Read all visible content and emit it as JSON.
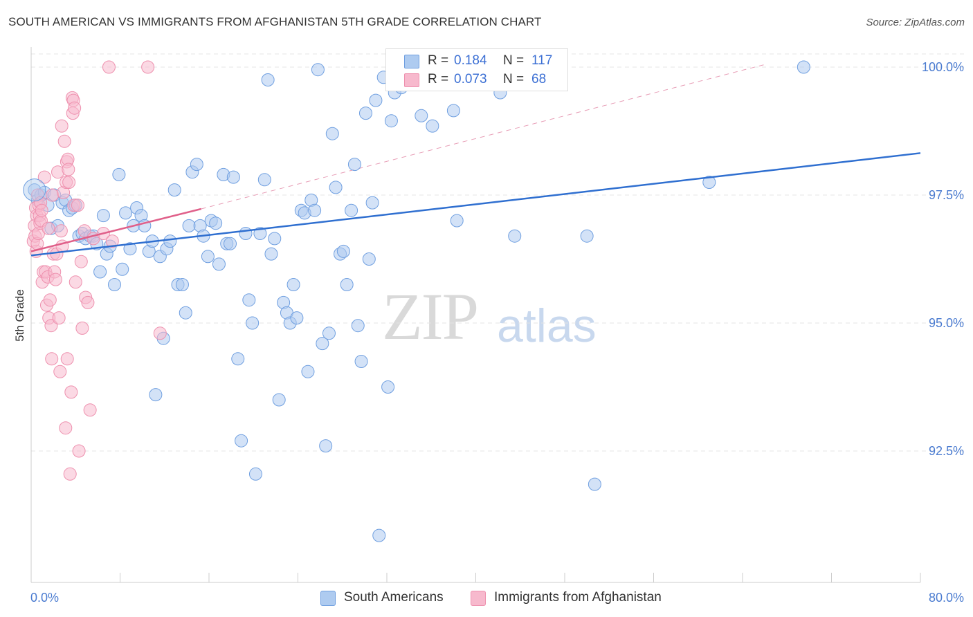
{
  "title": "SOUTH AMERICAN VS IMMIGRANTS FROM AFGHANISTAN 5TH GRADE CORRELATION CHART",
  "source": "Source: ZipAtlas.com",
  "watermark": {
    "zip": "ZIP",
    "atlas": "atlas"
  },
  "legend": {
    "row1": {
      "r_label": "R =",
      "r_value": "0.184",
      "n_label": "N =",
      "n_value": "117",
      "color": "#aecbf0"
    },
    "row2": {
      "r_label": "R =",
      "r_value": "0.073",
      "n_label": "N =",
      "n_value": "68",
      "color": "#f7b9cd"
    }
  },
  "bottom_legend": {
    "item1": "South Americans",
    "item2": "Immigrants from Afghanistan"
  },
  "chart_data": {
    "type": "scatter",
    "title": "SOUTH AMERICAN VS IMMIGRANTS FROM AFGHANISTAN 5TH GRADE CORRELATION CHART",
    "xlabel": "",
    "ylabel": "5th Grade",
    "xlim": [
      0,
      80
    ],
    "ylim": [
      90.2,
      100.4
    ],
    "x_ticks_labels": [
      "0.0%",
      "80.0%"
    ],
    "y_ticks": [
      92.5,
      95.0,
      97.5,
      100.0
    ],
    "y_ticks_labels": [
      "92.5%",
      "95.0%",
      "97.5%",
      "100.0%"
    ],
    "grid": true,
    "series": [
      {
        "name": "South Americans",
        "color": "#6f9fe0",
        "fill": "#aecbf0",
        "trend": {
          "x": [
            0,
            80
          ],
          "y": [
            96.32,
            98.32
          ],
          "color": "#2f6fd0",
          "style": "solid"
        },
        "points": [
          [
            0.3,
            97.6
          ],
          [
            0.6,
            97.4
          ],
          [
            0.9,
            97.5
          ],
          [
            1.2,
            97.55
          ],
          [
            1.5,
            97.3
          ],
          [
            1.8,
            96.85
          ],
          [
            2.1,
            97.5
          ],
          [
            2.4,
            96.9
          ],
          [
            2.8,
            97.35
          ],
          [
            3.1,
            97.4
          ],
          [
            3.4,
            97.2
          ],
          [
            3.7,
            97.25
          ],
          [
            4.0,
            97.3
          ],
          [
            4.3,
            96.7
          ],
          [
            4.6,
            96.75
          ],
          [
            4.9,
            96.65
          ],
          [
            5.3,
            96.7
          ],
          [
            5.6,
            96.7
          ],
          [
            5.9,
            96.55
          ],
          [
            6.2,
            96.0
          ],
          [
            6.5,
            97.1
          ],
          [
            6.8,
            96.35
          ],
          [
            7.1,
            96.5
          ],
          [
            7.5,
            95.75
          ],
          [
            7.9,
            97.9
          ],
          [
            8.2,
            96.05
          ],
          [
            8.5,
            97.15
          ],
          [
            8.9,
            96.45
          ],
          [
            9.2,
            96.9
          ],
          [
            9.5,
            97.25
          ],
          [
            9.9,
            97.1
          ],
          [
            10.2,
            96.9
          ],
          [
            10.6,
            96.4
          ],
          [
            10.9,
            96.6
          ],
          [
            11.2,
            93.6
          ],
          [
            11.6,
            96.3
          ],
          [
            11.9,
            94.7
          ],
          [
            12.2,
            96.45
          ],
          [
            12.5,
            96.6
          ],
          [
            12.9,
            97.6
          ],
          [
            13.2,
            95.75
          ],
          [
            13.6,
            95.75
          ],
          [
            13.9,
            95.2
          ],
          [
            14.2,
            96.9
          ],
          [
            14.5,
            97.95
          ],
          [
            14.9,
            98.1
          ],
          [
            15.2,
            96.9
          ],
          [
            15.5,
            96.7
          ],
          [
            15.9,
            96.3
          ],
          [
            16.2,
            97.0
          ],
          [
            16.6,
            96.95
          ],
          [
            16.9,
            96.15
          ],
          [
            17.3,
            97.9
          ],
          [
            17.6,
            96.55
          ],
          [
            17.9,
            96.55
          ],
          [
            18.2,
            97.85
          ],
          [
            18.6,
            94.3
          ],
          [
            18.9,
            92.7
          ],
          [
            19.3,
            96.75
          ],
          [
            19.6,
            95.45
          ],
          [
            19.9,
            95.0
          ],
          [
            20.2,
            92.05
          ],
          [
            20.6,
            96.75
          ],
          [
            21.0,
            97.8
          ],
          [
            21.3,
            99.75
          ],
          [
            21.6,
            96.35
          ],
          [
            21.9,
            96.65
          ],
          [
            22.3,
            93.5
          ],
          [
            22.7,
            95.4
          ],
          [
            23.0,
            95.2
          ],
          [
            23.3,
            95.0
          ],
          [
            23.6,
            95.75
          ],
          [
            23.9,
            95.1
          ],
          [
            24.3,
            97.2
          ],
          [
            24.6,
            97.15
          ],
          [
            24.9,
            94.05
          ],
          [
            25.2,
            97.4
          ],
          [
            25.5,
            97.2
          ],
          [
            25.8,
            99.95
          ],
          [
            26.2,
            94.6
          ],
          [
            26.5,
            92.6
          ],
          [
            26.8,
            94.8
          ],
          [
            27.1,
            98.7
          ],
          [
            27.4,
            97.65
          ],
          [
            27.8,
            96.35
          ],
          [
            28.1,
            96.4
          ],
          [
            28.4,
            95.75
          ],
          [
            28.8,
            97.2
          ],
          [
            29.1,
            98.1
          ],
          [
            29.4,
            94.95
          ],
          [
            29.7,
            94.25
          ],
          [
            30.1,
            99.1
          ],
          [
            30.4,
            96.25
          ],
          [
            30.7,
            97.35
          ],
          [
            31.0,
            99.35
          ],
          [
            31.3,
            90.85
          ],
          [
            31.7,
            99.8
          ],
          [
            32.1,
            93.75
          ],
          [
            32.4,
            98.95
          ],
          [
            32.7,
            99.5
          ],
          [
            33.0,
            100.0
          ],
          [
            33.3,
            99.6
          ],
          [
            35.1,
            99.05
          ],
          [
            36.1,
            98.85
          ],
          [
            37.0,
            99.7
          ],
          [
            38.0,
            99.15
          ],
          [
            39.0,
            99.95
          ],
          [
            40.5,
            99.7
          ],
          [
            38.3,
            97.0
          ],
          [
            42.2,
            99.5
          ],
          [
            43.5,
            96.7
          ],
          [
            44.0,
            99.7
          ],
          [
            47.5,
            99.9
          ],
          [
            50.0,
            96.7
          ],
          [
            50.7,
            91.85
          ],
          [
            61.0,
            97.75
          ],
          [
            69.5,
            100.0
          ]
        ]
      },
      {
        "name": "Immigrants from Afghanistan",
        "color": "#ee90ae",
        "fill": "#f7b9cd",
        "trend": {
          "x": [
            0,
            15.3
          ],
          "y": [
            96.4,
            97.23
          ],
          "color": "#e0608a",
          "style": "solid"
        },
        "trend_ext": {
          "x": [
            15.3,
            66
          ],
          "y": [
            97.23,
            100.05
          ],
          "color": "#e8a0b8",
          "style": "dashed"
        },
        "points": [
          [
            0.2,
            96.6
          ],
          [
            0.3,
            96.9
          ],
          [
            0.35,
            96.7
          ],
          [
            0.4,
            97.25
          ],
          [
            0.45,
            96.4
          ],
          [
            0.5,
            97.1
          ],
          [
            0.55,
            96.55
          ],
          [
            0.6,
            97.5
          ],
          [
            0.65,
            96.75
          ],
          [
            0.7,
            97.3
          ],
          [
            0.75,
            97.1
          ],
          [
            0.8,
            96.95
          ],
          [
            0.85,
            97.35
          ],
          [
            0.9,
            97.0
          ],
          [
            0.95,
            97.2
          ],
          [
            1.0,
            95.8
          ],
          [
            1.1,
            96.0
          ],
          [
            1.2,
            97.85
          ],
          [
            1.3,
            96.0
          ],
          [
            1.4,
            95.35
          ],
          [
            1.5,
            95.9
          ],
          [
            1.55,
            96.85
          ],
          [
            1.6,
            95.1
          ],
          [
            1.7,
            95.45
          ],
          [
            1.8,
            94.95
          ],
          [
            1.85,
            94.3
          ],
          [
            1.9,
            97.5
          ],
          [
            2.0,
            96.35
          ],
          [
            2.1,
            96.0
          ],
          [
            2.2,
            95.85
          ],
          [
            2.3,
            96.35
          ],
          [
            2.4,
            97.95
          ],
          [
            2.5,
            95.1
          ],
          [
            2.6,
            94.05
          ],
          [
            2.7,
            96.8
          ],
          [
            2.75,
            98.85
          ],
          [
            2.8,
            96.5
          ],
          [
            2.9,
            97.55
          ],
          [
            3.0,
            98.55
          ],
          [
            3.1,
            92.95
          ],
          [
            3.15,
            97.75
          ],
          [
            3.2,
            98.15
          ],
          [
            3.25,
            94.3
          ],
          [
            3.3,
            98.2
          ],
          [
            3.35,
            98.0
          ],
          [
            3.4,
            97.75
          ],
          [
            3.5,
            92.05
          ],
          [
            3.6,
            93.65
          ],
          [
            3.7,
            99.4
          ],
          [
            3.75,
            99.1
          ],
          [
            3.8,
            99.35
          ],
          [
            3.85,
            97.3
          ],
          [
            3.9,
            99.2
          ],
          [
            4.0,
            95.8
          ],
          [
            4.2,
            97.3
          ],
          [
            4.3,
            92.5
          ],
          [
            4.5,
            96.2
          ],
          [
            4.6,
            94.9
          ],
          [
            4.8,
            96.8
          ],
          [
            4.9,
            95.5
          ],
          [
            5.1,
            95.4
          ],
          [
            5.3,
            93.3
          ],
          [
            5.6,
            96.65
          ],
          [
            6.5,
            96.75
          ],
          [
            7.0,
            100.0
          ],
          [
            7.3,
            96.6
          ],
          [
            10.5,
            100.0
          ],
          [
            11.6,
            94.8
          ]
        ]
      }
    ]
  }
}
